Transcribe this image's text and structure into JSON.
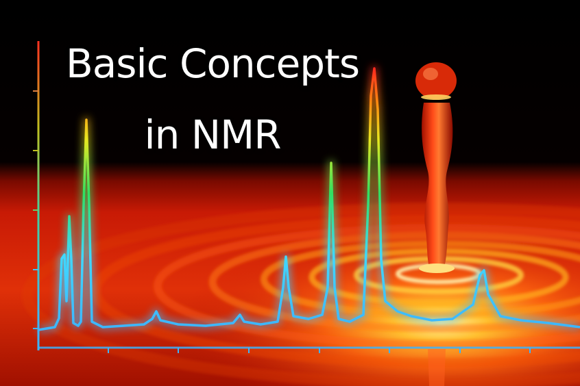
{
  "title": {
    "line1": "Basic Concepts",
    "line2": "in NMR"
  },
  "colors": {
    "background": "#000000",
    "surface_red": "#c81a05",
    "surface_orange": "#ff7a10",
    "surface_yellow": "#ffd84a",
    "spectrum_base": "#3cb4ff",
    "spectrum_peak_top": "#ff2020",
    "title_text": "#ffffff"
  }
}
